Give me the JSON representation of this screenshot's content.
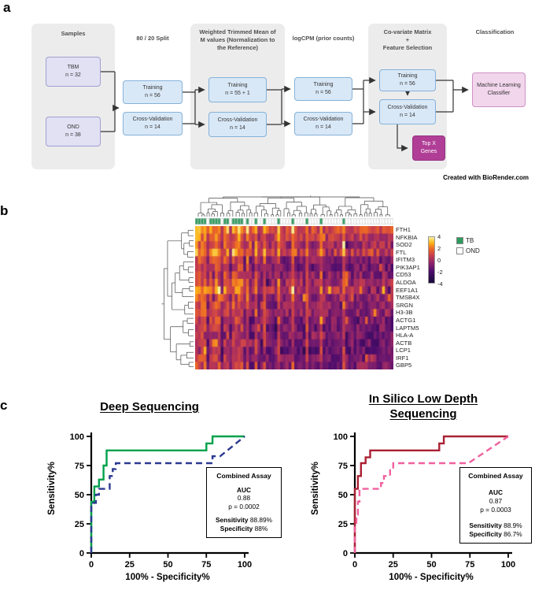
{
  "panels": {
    "a": "a",
    "b": "b",
    "c": "c"
  },
  "flowchart": {
    "credit": "Created with BioRender.com",
    "samples": {
      "title": "Samples",
      "tbm": {
        "l1": "TBM",
        "l2": "n = 32"
      },
      "ond": {
        "l1": "OND",
        "l2": "n = 38"
      }
    },
    "split": {
      "title": "80 / 20 Split",
      "training": {
        "l1": "Training",
        "l2": "n = 56"
      },
      "cv": {
        "l1": "Cross-Validation",
        "l2": "n = 14"
      }
    },
    "tmm": {
      "title_lines": [
        "Weighted Trimmed Mean of",
        "M values  (Normalization to",
        "the Reference)"
      ],
      "training": {
        "l1": "Training",
        "l2": "n = 55 + 1"
      },
      "cv": {
        "l1": "Cross-Validation",
        "l2": "n = 14"
      }
    },
    "logcpm": {
      "title": "logCPM (prior counts)",
      "training": {
        "l1": "Training",
        "l2": "n = 56"
      },
      "cv": {
        "l1": "Cross-Validation",
        "l2": "n = 14"
      }
    },
    "covariate": {
      "title_lines": [
        "Co-variate Matrix",
        "+",
        "Feature Selection"
      ],
      "training": {
        "l1": "Training",
        "l2": "n = 56"
      },
      "cv": {
        "l1": "Cross-Validation",
        "l2": "n = 14"
      },
      "topx": "Top X Genes"
    },
    "classification": {
      "title": "Classification",
      "box": "Machine Learning Classifier"
    }
  },
  "chart_data": [
    {
      "type": "heatmap",
      "rows": [
        "FTH1",
        "NFKBIA",
        "SOD2",
        "FTL",
        "IFITM3",
        "PIK3AP1",
        "CD53",
        "ALDOA",
        "EEF1A1",
        "TMSB4X",
        "SRGN",
        "H3-3B",
        "ACTG1",
        "LAPTM5",
        "HLA-A",
        "ACTB",
        "LCP1",
        "IRF1",
        "GBP5"
      ],
      "n_cols": 70,
      "row_bias": [
        1.6,
        0.9,
        0.4,
        1.1,
        -0.2,
        -0.6,
        -0.3,
        0.2,
        0.7,
        0.1,
        -0.2,
        0.0,
        -0.5,
        -0.7,
        -0.9,
        -0.8,
        -1.0,
        -0.6,
        -0.4
      ],
      "tb_effect": 1.3,
      "ond_effect": -0.5,
      "noise": 1.1,
      "seed": 42,
      "annotation_pattern": "1111011110110111101001001000010000100001000010000000100000000000000000",
      "annotation_legend": [
        {
          "label": "TB",
          "color": "#2d9b5e"
        },
        {
          "label": "OND",
          "color": "#ffffff"
        }
      ],
      "colorbar_ticks": [
        "4",
        "2",
        "0",
        "-2",
        "-4"
      ],
      "colormap_stops": [
        {
          "v": -4,
          "c": "#160b39"
        },
        {
          "v": -2,
          "c": "#4b0c6b"
        },
        {
          "v": -1,
          "c": "#781c6d"
        },
        {
          "v": 0,
          "c": "#a52c60"
        },
        {
          "v": 1,
          "c": "#cf4446"
        },
        {
          "v": 2,
          "c": "#ed6925"
        },
        {
          "v": 3,
          "c": "#fcb519"
        },
        {
          "v": 4,
          "c": "#f6f29e"
        }
      ]
    },
    {
      "type": "line",
      "title": "Deep Sequencing",
      "xlabel": "100% - Specificity%",
      "ylabel": "Sensitivity%",
      "xlim": [
        0,
        100
      ],
      "ylim": [
        0,
        100
      ],
      "xticks": [
        0,
        25,
        50,
        75,
        100
      ],
      "yticks": [
        0,
        25,
        50,
        75,
        100
      ],
      "series": [
        {
          "color": "#00a14b",
          "style": "solid",
          "points": [
            [
              0,
              0
            ],
            [
              0,
              44
            ],
            [
              2,
              44
            ],
            [
              2,
              57
            ],
            [
              5,
              57
            ],
            [
              5,
              63
            ],
            [
              8,
              63
            ],
            [
              8,
              75
            ],
            [
              10,
              75
            ],
            [
              10,
              88
            ],
            [
              14,
              88
            ],
            [
              75,
              88
            ],
            [
              75,
              94
            ],
            [
              79,
              94
            ],
            [
              79,
              100
            ],
            [
              100,
              100
            ]
          ]
        },
        {
          "color": "#2b3990",
          "style": "dashed",
          "points": [
            [
              0,
              0
            ],
            [
              0,
              43
            ],
            [
              3,
              43
            ],
            [
              3,
              50
            ],
            [
              5,
              50
            ],
            [
              5,
              55
            ],
            [
              12,
              55
            ],
            [
              12,
              66
            ],
            [
              14,
              66
            ],
            [
              14,
              72
            ],
            [
              16,
              72
            ],
            [
              16,
              77
            ],
            [
              21,
              77
            ],
            [
              79,
              77
            ],
            [
              79,
              83
            ],
            [
              84,
              83
            ],
            [
              100,
              100
            ]
          ]
        }
      ],
      "stats": {
        "title": "Combined Assay",
        "auc_label": "AUC",
        "auc": "0.88",
        "p": "p = 0.0002",
        "sens_label": "Sensitivity",
        "sens": "88.89%",
        "spec_label": "Specificity",
        "spec": "88%"
      }
    },
    {
      "type": "line",
      "title": "In Silico Low Depth Sequencing",
      "xlabel": "100% - Specificity%",
      "ylabel": "Sensitivity%",
      "xlim": [
        0,
        100
      ],
      "ylim": [
        0,
        100
      ],
      "xticks": [
        0,
        25,
        50,
        75,
        100
      ],
      "yticks": [
        0,
        25,
        50,
        75,
        100
      ],
      "series": [
        {
          "color": "#ab2033",
          "style": "solid",
          "points": [
            [
              0,
              0
            ],
            [
              0,
              55
            ],
            [
              2,
              55
            ],
            [
              2,
              66
            ],
            [
              4,
              66
            ],
            [
              4,
              77
            ],
            [
              7,
              77
            ],
            [
              7,
              82
            ],
            [
              10,
              82
            ],
            [
              10,
              88
            ],
            [
              13,
              88
            ],
            [
              55,
              88
            ],
            [
              55,
              94
            ],
            [
              58,
              94
            ],
            [
              58,
              100
            ],
            [
              100,
              100
            ]
          ]
        },
        {
          "color": "#f0609e",
          "style": "dashed",
          "points": [
            [
              0,
              0
            ],
            [
              0,
              22
            ],
            [
              1,
              22
            ],
            [
              1,
              33
            ],
            [
              2,
              33
            ],
            [
              2,
              44
            ],
            [
              3,
              44
            ],
            [
              3,
              55
            ],
            [
              17,
              55
            ],
            [
              17,
              60
            ],
            [
              19,
              60
            ],
            [
              19,
              66
            ],
            [
              23,
              66
            ],
            [
              23,
              72
            ],
            [
              25,
              72
            ],
            [
              25,
              77
            ],
            [
              28,
              77
            ],
            [
              74,
              77
            ],
            [
              100,
              100
            ]
          ]
        }
      ],
      "stats": {
        "title": "Combined Assay",
        "auc_label": "AUC",
        "auc": "0.87",
        "p": "p = 0.0003",
        "sens_label": "Sensitivity",
        "sens": "88.9%",
        "spec_label": "Specificity",
        "spec": "86.7%"
      }
    }
  ]
}
